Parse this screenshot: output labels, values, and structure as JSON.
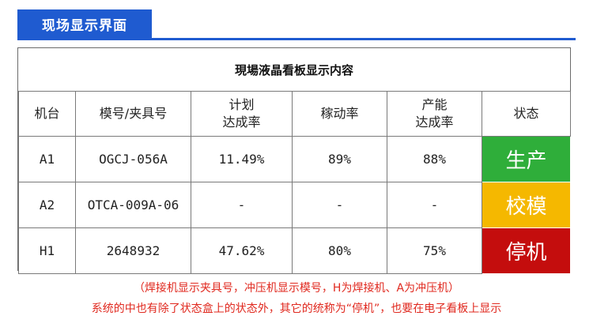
{
  "banner": {
    "title": "现场显示界面"
  },
  "board": {
    "title": "現場液晶看板显示内容",
    "headers": {
      "machine": "机台",
      "mold": "模号/夹具号",
      "plan_line1": "计划",
      "plan_line2": "达成率",
      "utilization": "稼动率",
      "prod_line1": "产能",
      "prod_line2": "达成率",
      "status": "状态"
    },
    "rows": [
      {
        "machine": "A1",
        "mold": "OGCJ-056A",
        "plan": "11.49%",
        "utilization": "89%",
        "production": "88%",
        "status": "生产",
        "status_color": "#2fae3a"
      },
      {
        "machine": "A2",
        "mold": "OTCA-009A-06",
        "plan": "-",
        "utilization": "-",
        "production": "-",
        "status": "校模",
        "status_color": "#f5b800"
      },
      {
        "machine": "H1",
        "mold": "2648932",
        "plan": "47.62%",
        "utilization": "80%",
        "production": "75%",
        "status": "停机",
        "status_color": "#c40d0d"
      }
    ]
  },
  "notes": {
    "line1": "（焊接机显示夹具号，冲压机显示模号，H为焊接机、A为冲压机）",
    "line2": "系统的中也有除了状态盒上的状态外，其它的统称为“停机”，也要在电子看板上显示"
  },
  "colors": {
    "banner": "#1f5bd0",
    "note_text": "#e0291f"
  }
}
